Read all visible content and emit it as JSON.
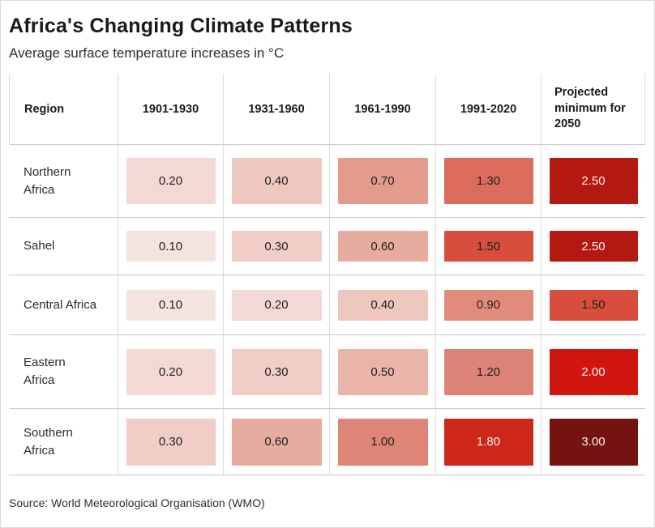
{
  "header": {
    "title": "Africa's Changing Climate Patterns",
    "subtitle": "Average surface temperature increases in °C"
  },
  "footer": {
    "source": "Source: World Meteorological Organisation (WMO)"
  },
  "chart_data": {
    "type": "heatmap",
    "title": "Africa's Changing Climate Patterns",
    "subtitle": "Average surface temperature increases in °C",
    "unit": "°C",
    "columns": [
      "Region",
      "1901-1930",
      "1931-1960",
      "1961-1990",
      "1991-2020",
      "Projected minimum for 2050"
    ],
    "rows": [
      {
        "region": "Northern Africa",
        "label_lines": [
          "Northern",
          "Africa"
        ],
        "values": [
          0.2,
          0.4,
          0.7,
          1.3,
          2.5
        ],
        "display": [
          "0.20",
          "0.40",
          "0.70",
          "1.30",
          "2.50"
        ]
      },
      {
        "region": "Sahel",
        "label_lines": [
          "Sahel"
        ],
        "values": [
          0.1,
          0.3,
          0.6,
          1.5,
          2.5
        ],
        "display": [
          "0.10",
          "0.30",
          "0.60",
          "1.50",
          "2.50"
        ]
      },
      {
        "region": "Central Africa",
        "label_lines": [
          "Central Africa"
        ],
        "values": [
          0.1,
          0.2,
          0.4,
          0.9,
          1.5
        ],
        "display": [
          "0.10",
          "0.20",
          "0.40",
          "0.90",
          "1.50"
        ]
      },
      {
        "region": "Eastern Africa",
        "label_lines": [
          "Eastern",
          "Africa"
        ],
        "values": [
          0.2,
          0.3,
          0.5,
          1.2,
          2.0
        ],
        "display": [
          "0.20",
          "0.30",
          "0.50",
          "1.20",
          "2.00"
        ]
      },
      {
        "region": "Southern Africa",
        "label_lines": [
          "Southern",
          "Africa"
        ],
        "values": [
          0.3,
          0.6,
          1.0,
          1.8,
          3.0
        ],
        "display": [
          "0.30",
          "0.60",
          "1.00",
          "1.80",
          "3.00"
        ]
      }
    ],
    "value_range": [
      0.1,
      3.0
    ],
    "value_colors": {
      "0.10": "#f3e4e0",
      "0.20": "#f3d9d3",
      "0.30": "#f0cdc6",
      "0.40": "#eec7bf",
      "0.50": "#e9b5ab",
      "0.60": "#e7aba0",
      "0.70": "#e39b8e",
      "0.90": "#e18b7d",
      "1.00": "#df8577",
      "1.20": "#dd8276",
      "1.30": "#db6c5b",
      "1.50": "#d84e3d",
      "1.80": "#cc2719",
      "2.00": "#d0160f",
      "2.50": "#b41911",
      "3.00": "#741310"
    },
    "light_text_values": [
      "1.80",
      "2.00",
      "2.50",
      "3.00"
    ],
    "legend": "none",
    "grid": "row and column separator lines",
    "source": "Source: World Meteorological Organisation (WMO)"
  }
}
